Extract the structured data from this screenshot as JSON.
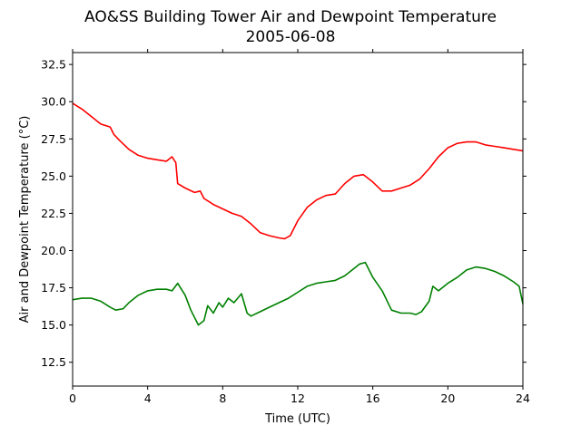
{
  "chart_data": {
    "type": "line",
    "title": "AO&SS Building Tower Air and Dewpoint Temperature",
    "subtitle": "2005-06-08",
    "xlabel": "Time (UTC)",
    "ylabel": "Air and Dewpoint Temperature (°C)",
    "xlim": [
      0,
      24
    ],
    "ylim": [
      10.9,
      33.3
    ],
    "xticks": [
      0,
      4,
      8,
      12,
      16,
      20,
      24
    ],
    "yticks": [
      12.5,
      15.0,
      17.5,
      20.0,
      22.5,
      25.0,
      27.5,
      30.0,
      32.5
    ],
    "ytick_labels": [
      "12.5",
      "15.0",
      "17.5",
      "20.0",
      "22.5",
      "25.0",
      "27.5",
      "30.0",
      "32.5"
    ],
    "grid": false,
    "series": [
      {
        "color": "#ff0000",
        "x": [
          0,
          0.5,
          1,
          1.5,
          2,
          2.2,
          2.5,
          3,
          3.5,
          4,
          4.5,
          5,
          5.3,
          5.5,
          5.6,
          6,
          6.5,
          6.8,
          7,
          7.5,
          8,
          8.5,
          9,
          9.5,
          10,
          10.5,
          11,
          11.3,
          11.6,
          12,
          12.5,
          13,
          13.5,
          14,
          14.5,
          15,
          15.5,
          16,
          16.5,
          17,
          17.5,
          18,
          18.5,
          19,
          19.5,
          20,
          20.5,
          21,
          21.5,
          22,
          22.5,
          23,
          23.5,
          24
        ],
        "y": [
          29.9,
          29.5,
          29.0,
          28.5,
          28.3,
          27.8,
          27.4,
          26.8,
          26.4,
          26.2,
          26.1,
          26.0,
          26.3,
          25.9,
          24.5,
          24.2,
          23.9,
          24.0,
          23.5,
          23.1,
          22.8,
          22.5,
          22.3,
          21.8,
          21.2,
          21.0,
          20.85,
          20.8,
          21.0,
          22.0,
          22.9,
          23.4,
          23.7,
          23.8,
          24.5,
          25.0,
          25.1,
          24.6,
          24.0,
          24.0,
          24.2,
          24.4,
          24.8,
          25.5,
          26.3,
          26.9,
          27.2,
          27.3,
          27.3,
          27.1,
          27.0,
          26.9,
          26.8,
          26.7
        ]
      },
      {
        "color": "#008000",
        "x": [
          0,
          0.5,
          1,
          1.5,
          2,
          2.3,
          2.7,
          3,
          3.5,
          4,
          4.5,
          5,
          5.3,
          5.6,
          6,
          6.3,
          6.7,
          7,
          7.2,
          7.5,
          7.8,
          8,
          8.3,
          8.6,
          9,
          9.3,
          9.5,
          10,
          10.5,
          11,
          11.5,
          12,
          12.5,
          13,
          13.5,
          14,
          14.5,
          15,
          15.3,
          15.6,
          16,
          16.5,
          17,
          17.5,
          18,
          18.3,
          18.6,
          19,
          19.2,
          19.5,
          20,
          20.5,
          21,
          21.5,
          22,
          22.5,
          23,
          23.5,
          23.8,
          24
        ],
        "y": [
          16.7,
          16.8,
          16.8,
          16.6,
          16.2,
          16.0,
          16.1,
          16.5,
          17.0,
          17.3,
          17.4,
          17.4,
          17.3,
          17.8,
          17.0,
          16.0,
          15.0,
          15.3,
          16.3,
          15.8,
          16.5,
          16.2,
          16.8,
          16.5,
          17.1,
          15.8,
          15.6,
          15.9,
          16.2,
          16.5,
          16.8,
          17.2,
          17.6,
          17.8,
          17.9,
          18.0,
          18.3,
          18.8,
          19.1,
          19.2,
          18.2,
          17.3,
          16.0,
          15.8,
          15.8,
          15.7,
          15.9,
          16.6,
          17.6,
          17.3,
          17.8,
          18.2,
          18.7,
          18.9,
          18.8,
          18.6,
          18.3,
          17.9,
          17.6,
          16.4
        ]
      }
    ]
  }
}
